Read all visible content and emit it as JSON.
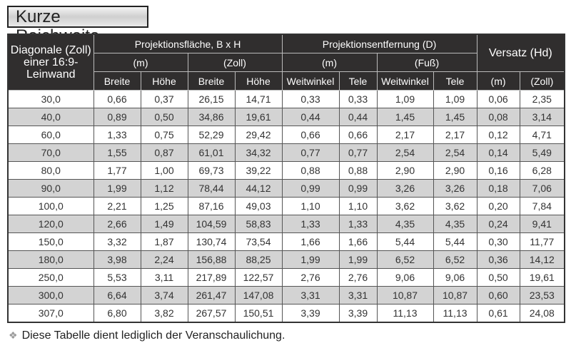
{
  "title": "Kurze Reichweite",
  "header": {
    "diagonal": "Diagonale (Zoll) einer 16:9-Leinwand",
    "projection_area": "Projektionsfläche, B x H",
    "projection_distance": "Projektionsentfernung (D)",
    "offset": "Versatz (Hd)",
    "unit_m": "(m)",
    "unit_zoll": "(Zoll)",
    "unit_fuss": "(Fuß)",
    "breite": "Breite",
    "hoehe": "Höhe",
    "weitwinkel": "Weitwinkel",
    "tele": "Tele"
  },
  "rows": [
    [
      "30,0",
      "0,66",
      "0,37",
      "26,15",
      "14,71",
      "0,33",
      "0,33",
      "1,09",
      "1,09",
      "0,06",
      "2,35"
    ],
    [
      "40,0",
      "0,89",
      "0,50",
      "34,86",
      "19,61",
      "0,44",
      "0,44",
      "1,45",
      "1,45",
      "0,08",
      "3,14"
    ],
    [
      "60,0",
      "1,33",
      "0,75",
      "52,29",
      "29,42",
      "0,66",
      "0,66",
      "2,17",
      "2,17",
      "0,12",
      "4,71"
    ],
    [
      "70,0",
      "1,55",
      "0,87",
      "61,01",
      "34,32",
      "0,77",
      "0,77",
      "2,54",
      "2,54",
      "0,14",
      "5,49"
    ],
    [
      "80,0",
      "1,77",
      "1,00",
      "69,73",
      "39,22",
      "0,88",
      "0,88",
      "2,90",
      "2,90",
      "0,16",
      "6,28"
    ],
    [
      "90,0",
      "1,99",
      "1,12",
      "78,44",
      "44,12",
      "0,99",
      "0,99",
      "3,26",
      "3,26",
      "0,18",
      "7,06"
    ],
    [
      "100,0",
      "2,21",
      "1,25",
      "87,16",
      "49,03",
      "1,10",
      "1,10",
      "3,62",
      "3,62",
      "0,20",
      "7,84"
    ],
    [
      "120,0",
      "2,66",
      "1,49",
      "104,59",
      "58,83",
      "1,33",
      "1,33",
      "4,35",
      "4,35",
      "0,24",
      "9,41"
    ],
    [
      "150,0",
      "3,32",
      "1,87",
      "130,74",
      "73,54",
      "1,66",
      "1,66",
      "5,44",
      "5,44",
      "0,30",
      "11,77"
    ],
    [
      "180,0",
      "3,98",
      "2,24",
      "156,88",
      "88,25",
      "1,99",
      "1,99",
      "6,52",
      "6,52",
      "0,36",
      "14,12"
    ],
    [
      "250,0",
      "5,53",
      "3,11",
      "217,89",
      "122,57",
      "2,76",
      "2,76",
      "9,06",
      "9,06",
      "0,50",
      "19,61"
    ],
    [
      "300,0",
      "6,64",
      "3,74",
      "261,47",
      "147,08",
      "3,31",
      "3,31",
      "10,87",
      "10,87",
      "0,60",
      "23,53"
    ],
    [
      "307,0",
      "6,80",
      "3,82",
      "267,57",
      "150,51",
      "3,39",
      "3,39",
      "11,13",
      "11,13",
      "0,61",
      "24,08"
    ]
  ],
  "note": "Diese Tabelle dient lediglich der Veranschaulichung.",
  "note_icon": "diamond-bullet-icon"
}
